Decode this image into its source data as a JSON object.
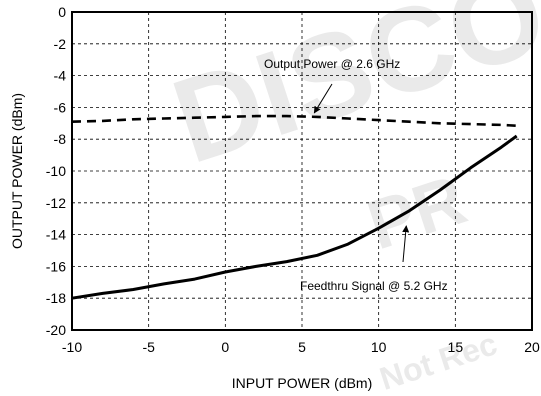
{
  "chart_data": {
    "type": "line",
    "xlabel": "INPUT POWER (dBm)",
    "ylabel": "OUTPUT POWER (dBm)",
    "xlim": [
      -10,
      20
    ],
    "ylim": [
      -20,
      0
    ],
    "xticks": [
      -10,
      -5,
      0,
      5,
      10,
      15,
      20
    ],
    "yticks": [
      0,
      -2,
      -4,
      -6,
      -8,
      -10,
      -12,
      -14,
      -16,
      -18,
      -20
    ],
    "grid": true,
    "series": [
      {
        "name": "Output Power @ 2.6 GHz",
        "style": "dashed",
        "x": [
          -10,
          -8,
          -6,
          -4,
          -2,
          0,
          2,
          4,
          6,
          8,
          10,
          12,
          14,
          16,
          18,
          19
        ],
        "y": [
          -6.9,
          -6.85,
          -6.75,
          -6.7,
          -6.65,
          -6.6,
          -6.55,
          -6.55,
          -6.6,
          -6.7,
          -6.8,
          -6.9,
          -7.0,
          -7.05,
          -7.1,
          -7.15
        ]
      },
      {
        "name": "Feedthru Signal @ 5.2 GHz",
        "style": "solid",
        "x": [
          -10,
          -8,
          -6,
          -4,
          -2,
          0,
          2,
          4,
          6,
          8,
          10,
          12,
          14,
          16,
          18,
          19
        ],
        "y": [
          -18.0,
          -17.7,
          -17.45,
          -17.1,
          -16.8,
          -16.35,
          -16.0,
          -15.7,
          -15.3,
          -14.6,
          -13.6,
          -12.5,
          -11.2,
          -9.8,
          -8.5,
          -7.8
        ]
      }
    ],
    "annotations": [
      {
        "text": "Output Power @ 2.6 GHz",
        "arrow_to": [
          5.8,
          -6.6
        ]
      },
      {
        "text": "Feedthru Signal @ 5.2 GHz",
        "arrow_to": [
          11.8,
          -13.2
        ]
      }
    ]
  },
  "watermark": [
    "DISCO",
    "PR",
    "Not Rec"
  ]
}
